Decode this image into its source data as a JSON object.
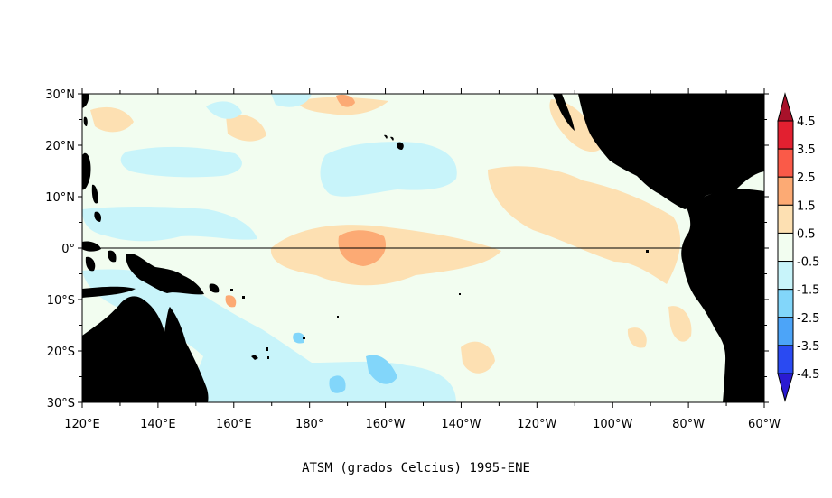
{
  "caption": "ATSM (grados Celcius) 1995-ENE",
  "map": {
    "lat_labels": [
      "30°N",
      "20°N",
      "10°N",
      "0°",
      "10°S",
      "20°S",
      "30°S"
    ],
    "lon_labels": [
      "120°E",
      "140°E",
      "160°E",
      "180°",
      "160°W",
      "140°W",
      "120°W",
      "100°W",
      "80°W",
      "60°W"
    ],
    "land_color": "#000000",
    "background_anomaly_color": "#f2fdf0"
  },
  "colorbar": {
    "top_arrow_color": "#a8112a",
    "bottom_arrow_color": "#2a1ad2",
    "bins": [
      {
        "color": "#e22030"
      },
      {
        "color": "#fa5a48"
      },
      {
        "color": "#fcaa74"
      },
      {
        "color": "#fde0b2"
      },
      {
        "color": "#f2fdf0"
      },
      {
        "color": "#c8f4fa"
      },
      {
        "color": "#82d6fa"
      },
      {
        "color": "#4ca4f8"
      },
      {
        "color": "#2a4af2"
      }
    ],
    "labels": [
      "4.5",
      "3.5",
      "2.5",
      "1.5",
      "0.5",
      "-0.5",
      "-1.5",
      "-2.5",
      "-3.5",
      "-4.5"
    ]
  }
}
